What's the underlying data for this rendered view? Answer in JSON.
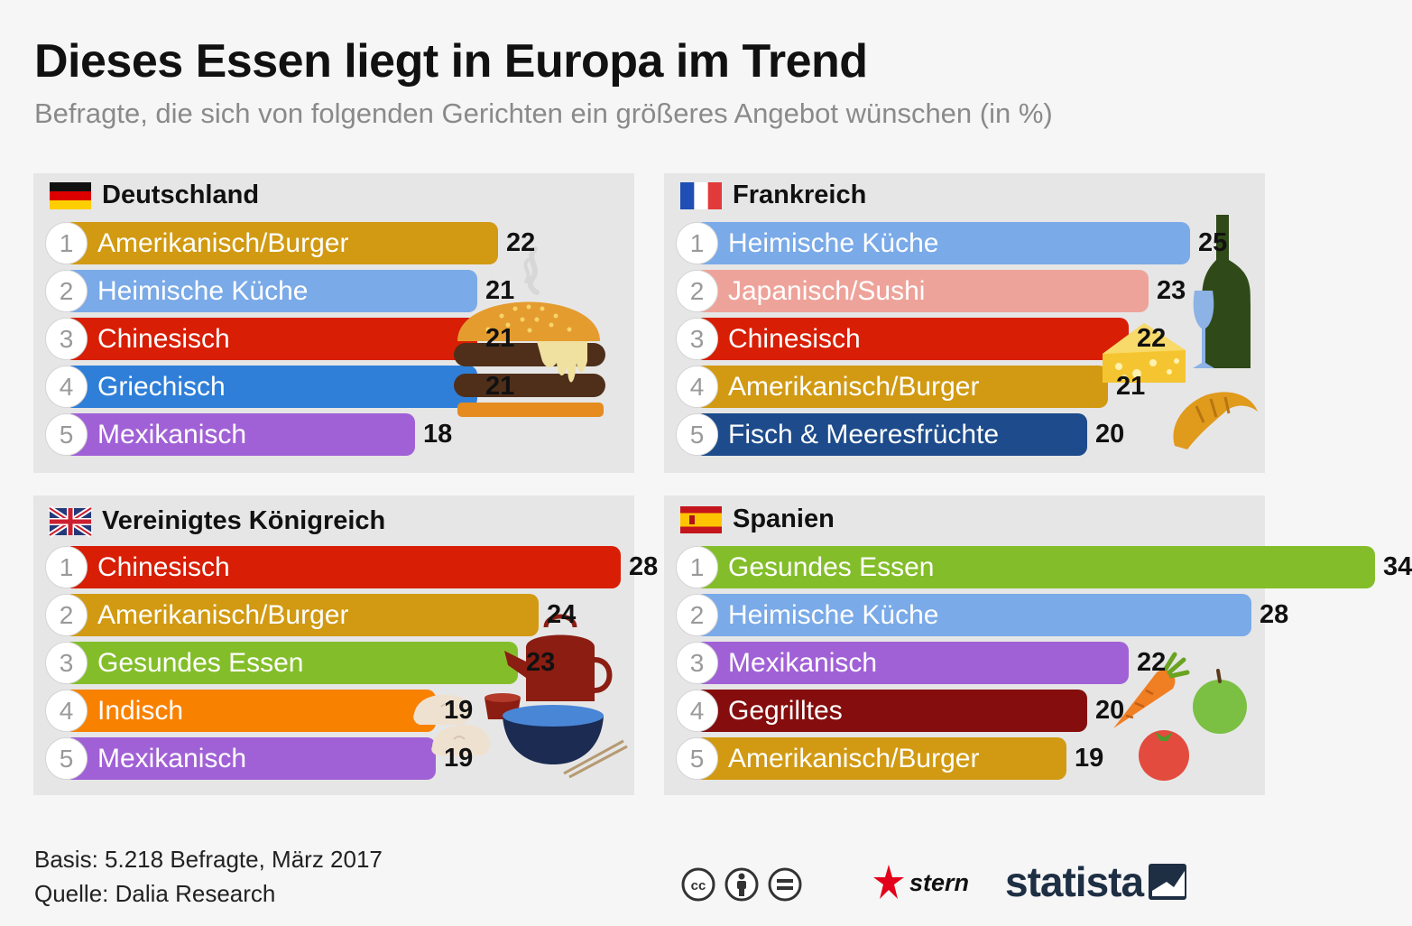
{
  "title": "Dieses Essen liegt in Europa im Trend",
  "subtitle": "Befragte, die sich von folgenden Gerichten ein größeres Angebot wünschen (in %)",
  "footer": {
    "basis": "Basis: 5.218 Befragte, März 2017",
    "source": "Quelle: Dalia Research",
    "stern_label": "stern",
    "statista_label": "statista"
  },
  "colors": {
    "background": "#f6f6f6",
    "panel": "#e6e6e6",
    "amerikanisch": "#d19a12",
    "heimisch": "#7aaae8",
    "chinesisch": "#d81e05",
    "griechisch": "#2f7fd8",
    "mexikanisch": "#a161d6",
    "japanisch": "#eea39a",
    "fisch": "#1d4b8b",
    "gesund": "#83be2a",
    "indisch": "#f98100",
    "gegrilltes": "#850d0d"
  },
  "chart_data": [
    {
      "type": "bar",
      "title": "Deutschland",
      "flag": "flag-germany",
      "ranks": [
        "1",
        "2",
        "3",
        "4",
        "5"
      ],
      "categories": [
        "Amerikanisch/Burger",
        "Heimische Küche",
        "Chinesisch",
        "Griechisch",
        "Mexikanisch"
      ],
      "values": [
        22,
        21,
        21,
        21,
        18
      ],
      "color_keys": [
        "amerikanisch",
        "heimisch",
        "chinesisch",
        "griechisch",
        "mexikanisch"
      ],
      "xlim": [
        0,
        34
      ]
    },
    {
      "type": "bar",
      "title": "Frankreich",
      "flag": "flag-france",
      "ranks": [
        "1",
        "2",
        "3",
        "4",
        "5"
      ],
      "categories": [
        "Heimische Küche",
        "Japanisch/Sushi",
        "Chinesisch",
        "Amerikanisch/Burger",
        "Fisch & Meeresfrüchte"
      ],
      "values": [
        25,
        23,
        22,
        21,
        20
      ],
      "color_keys": [
        "heimisch",
        "japanisch",
        "chinesisch",
        "amerikanisch",
        "fisch"
      ],
      "xlim": [
        0,
        34
      ]
    },
    {
      "type": "bar",
      "title": "Vereinigtes Königreich",
      "flag": "flag-uk",
      "ranks": [
        "1",
        "2",
        "3",
        "4",
        "5"
      ],
      "categories": [
        "Chinesisch",
        "Amerikanisch/Burger",
        "Gesundes Essen",
        "Indisch",
        "Mexikanisch"
      ],
      "values": [
        28,
        24,
        23,
        19,
        19
      ],
      "color_keys": [
        "chinesisch",
        "amerikanisch",
        "gesund",
        "indisch",
        "mexikanisch"
      ],
      "xlim": [
        0,
        34
      ]
    },
    {
      "type": "bar",
      "title": "Spanien",
      "flag": "flag-spain",
      "ranks": [
        "1",
        "2",
        "3",
        "4",
        "5"
      ],
      "categories": [
        "Gesundes Essen",
        "Heimische Küche",
        "Mexikanisch",
        "Gegrilltes",
        "Amerikanisch/Burger"
      ],
      "values": [
        34,
        28,
        22,
        20,
        19
      ],
      "color_keys": [
        "gesund",
        "heimisch",
        "mexikanisch",
        "gegrilltes",
        "amerikanisch"
      ],
      "xlim": [
        0,
        34
      ]
    }
  ]
}
